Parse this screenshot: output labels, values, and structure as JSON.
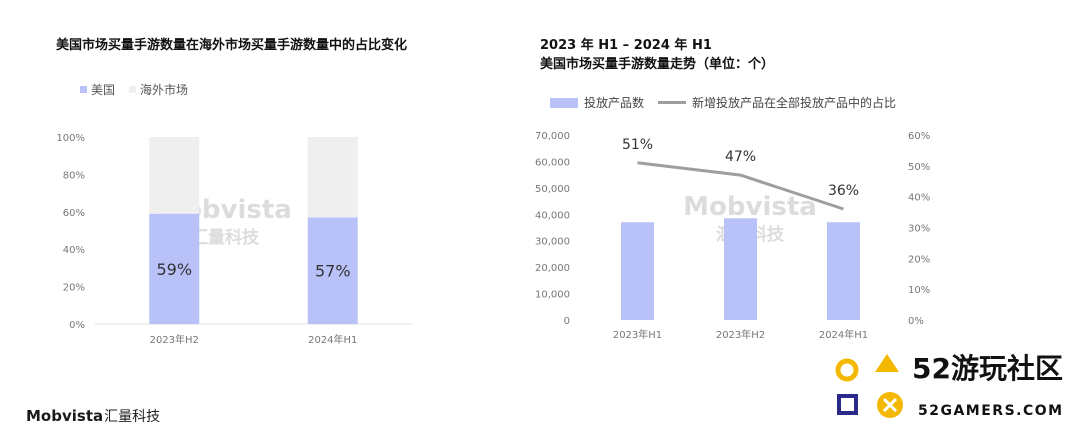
{
  "colors": {
    "bar_blue": "#b8c2f8",
    "bar_grey": "#efefef",
    "line_grey": "#9e9e9e",
    "axis_text": "#777777",
    "grid": "#e2e2e2"
  },
  "left_title": "美国市场买量手游数量在海外市场买量手游数量中的占比变化",
  "right_title_line1": "2023 年 H1 – 2024 年 H1",
  "right_title_line2": "美国市场买量手游数量走势（单位：个）",
  "brand": {
    "name": "Mobvista",
    "sub": "汇量科技"
  },
  "watermark": {
    "line1": "Mobvista",
    "line2": "汇量科技"
  },
  "logo": {
    "big": "52游玩社区",
    "url": "52GAMERS.COM"
  },
  "chart_data": [
    {
      "type": "bar",
      "stacked": true,
      "title": "美国市场买量手游数量在海外市场买量手游数量中的占比变化",
      "categories": [
        "2023年H2",
        "2024年H1"
      ],
      "series": [
        {
          "name": "美国",
          "values": [
            59,
            57
          ],
          "labels": [
            "59%",
            "57%"
          ]
        },
        {
          "name": "海外市场",
          "values": [
            41,
            43
          ]
        }
      ],
      "ylim": [
        0,
        100
      ],
      "yticks": [
        "0%",
        "20%",
        "40%",
        "60%",
        "80%",
        "100%"
      ],
      "legend": "top-left",
      "grid": false
    },
    {
      "type": "bar+line",
      "title": "2023 年 H1 – 2024 年 H1 美国市场买量手游数量走势（单位：个）",
      "categories": [
        "2023年H1",
        "2023年H2",
        "2024年H1"
      ],
      "series": [
        {
          "name": "投放产品数",
          "type": "bar",
          "axis": "left",
          "values": [
            37000,
            38500,
            37000
          ]
        },
        {
          "name": "新增投放产品在全部投放产品中的占比",
          "type": "line",
          "axis": "right",
          "values": [
            51,
            47,
            36
          ],
          "labels": [
            "51%",
            "47%",
            "36%"
          ]
        }
      ],
      "ylim_left": [
        0,
        70000
      ],
      "yticks_left": [
        "0",
        "10,000",
        "20,000",
        "30,000",
        "40,000",
        "50,000",
        "60,000",
        "70,000"
      ],
      "ylim_right": [
        0,
        60
      ],
      "yticks_right": [
        "0%",
        "10%",
        "20%",
        "30%",
        "40%",
        "50%",
        "60%"
      ],
      "legend": "top-left",
      "grid": false
    }
  ]
}
